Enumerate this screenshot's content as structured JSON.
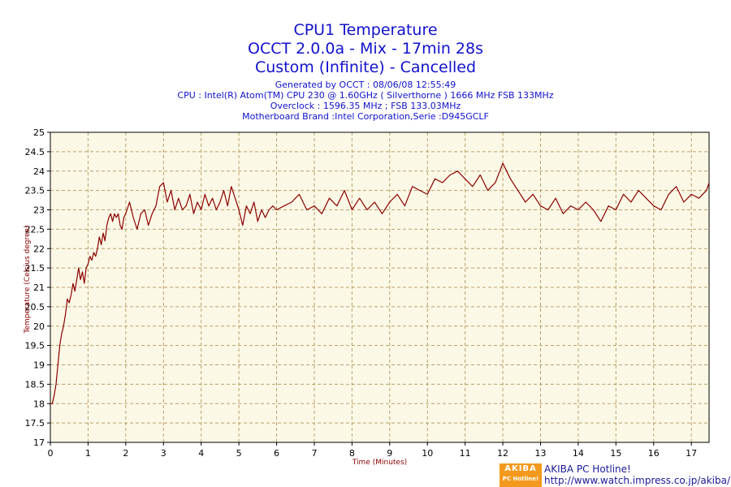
{
  "titles": {
    "line1": "CPU1 Temperature",
    "line2": "OCCT 2.0.0a - Mix - 17min 28s",
    "line3": "Custom (Infinite) - Cancelled",
    "generated": "Generated by OCCT : 08/06/08 12:55:49",
    "cpu": "CPU : Intel(R) Atom(TM) CPU 230 @ 1.60GHz ( Silverthorne ) 1666 MHz FSB 133MHz",
    "overclock": "Overclock : 1596.35 MHz ; FSB 133.03MHz",
    "motherboard": "Motherboard Brand :Intel Corporation,Serie :D945GCLF"
  },
  "watermark": {
    "logo_line1": "AKIBA",
    "logo_line2": "PC Hotline!",
    "site_name": "AKIBA PC Hotline!",
    "url": "http://www.watch.impress.co.jp/akiba/"
  },
  "colors": {
    "title": "#1111cc",
    "plot_bg": "#fcf8e6",
    "grid": "#b8a070",
    "line": "#8b0000",
    "axis_label": "#8b0000"
  },
  "chart_data": {
    "type": "line",
    "title": "CPU1 Temperature",
    "xlabel": "Time (Minutes)",
    "ylabel": "Temperature (Celsius degree)",
    "xlim": [
      0,
      17.47
    ],
    "ylim": [
      17,
      25
    ],
    "xticks": [
      0,
      1,
      2,
      3,
      4,
      5,
      6,
      7,
      8,
      9,
      10,
      11,
      12,
      13,
      14,
      15,
      16,
      17
    ],
    "yticks": [
      17,
      17.5,
      18,
      18.5,
      19,
      19.5,
      20,
      20.5,
      21,
      21.5,
      22,
      22.5,
      23,
      23.5,
      24,
      24.5,
      25
    ],
    "ytick_labels": [
      "17",
      "17.5",
      "18",
      "18.5",
      "19",
      "19.5",
      "20",
      "20.5",
      "21",
      "21.5",
      "22",
      "22.5",
      "23",
      "23.5",
      "24",
      "24.5",
      "25"
    ],
    "grid": true,
    "series": [
      {
        "name": "CPU1 Temperature",
        "x": [
          0,
          0.05,
          0.1,
          0.15,
          0.2,
          0.25,
          0.3,
          0.35,
          0.4,
          0.45,
          0.5,
          0.55,
          0.6,
          0.65,
          0.7,
          0.75,
          0.8,
          0.85,
          0.9,
          0.95,
          1.0,
          1.05,
          1.1,
          1.15,
          1.2,
          1.25,
          1.3,
          1.35,
          1.4,
          1.45,
          1.5,
          1.55,
          1.6,
          1.65,
          1.7,
          1.75,
          1.8,
          1.85,
          1.9,
          1.95,
          2.0,
          2.1,
          2.2,
          2.3,
          2.4,
          2.5,
          2.6,
          2.7,
          2.8,
          2.9,
          3.0,
          3.1,
          3.2,
          3.3,
          3.4,
          3.5,
          3.6,
          3.7,
          3.8,
          3.9,
          4.0,
          4.1,
          4.2,
          4.3,
          4.4,
          4.5,
          4.6,
          4.7,
          4.8,
          4.9,
          5.0,
          5.1,
          5.2,
          5.3,
          5.4,
          5.5,
          5.6,
          5.7,
          5.8,
          5.9,
          6.0,
          6.2,
          6.4,
          6.6,
          6.8,
          7.0,
          7.2,
          7.4,
          7.6,
          7.8,
          8.0,
          8.2,
          8.4,
          8.6,
          8.8,
          9.0,
          9.2,
          9.4,
          9.6,
          9.8,
          10.0,
          10.2,
          10.4,
          10.6,
          10.8,
          11.0,
          11.2,
          11.4,
          11.6,
          11.8,
          12.0,
          12.2,
          12.4,
          12.6,
          12.8,
          13.0,
          13.2,
          13.4,
          13.6,
          13.8,
          14.0,
          14.2,
          14.4,
          14.6,
          14.8,
          15.0,
          15.2,
          15.4,
          15.6,
          15.8,
          16.0,
          16.2,
          16.4,
          16.6,
          16.8,
          17.0,
          17.2,
          17.4,
          17.47
        ],
        "values": [
          18.0,
          18.0,
          18.2,
          18.5,
          19.0,
          19.5,
          19.8,
          20.0,
          20.3,
          20.7,
          20.6,
          20.8,
          21.1,
          20.9,
          21.2,
          21.5,
          21.2,
          21.4,
          21.1,
          21.5,
          21.6,
          21.8,
          21.7,
          21.9,
          21.8,
          22.0,
          22.3,
          22.1,
          22.4,
          22.2,
          22.6,
          22.8,
          22.9,
          22.7,
          22.9,
          22.8,
          22.9,
          22.6,
          22.5,
          22.8,
          22.9,
          23.2,
          22.8,
          22.5,
          22.9,
          23.0,
          22.6,
          22.9,
          23.1,
          23.6,
          23.7,
          23.2,
          23.5,
          23.0,
          23.3,
          23.0,
          23.1,
          23.4,
          22.9,
          23.2,
          23.0,
          23.4,
          23.1,
          23.3,
          23.0,
          23.2,
          23.5,
          23.1,
          23.6,
          23.3,
          23.0,
          22.6,
          23.1,
          22.9,
          23.2,
          22.7,
          23.0,
          22.8,
          23.0,
          23.1,
          23.0,
          23.1,
          23.2,
          23.4,
          23.0,
          23.1,
          22.9,
          23.3,
          23.1,
          23.5,
          23.0,
          23.3,
          23.0,
          23.2,
          22.9,
          23.2,
          23.4,
          23.1,
          23.6,
          23.5,
          23.4,
          23.8,
          23.7,
          23.9,
          24.0,
          23.8,
          23.6,
          23.9,
          23.5,
          23.7,
          24.2,
          23.8,
          23.5,
          23.2,
          23.4,
          23.1,
          23.0,
          23.3,
          22.9,
          23.1,
          23.0,
          23.2,
          23.0,
          22.7,
          23.1,
          23.0,
          23.4,
          23.2,
          23.5,
          23.3,
          23.1,
          23.0,
          23.4,
          23.6,
          23.2,
          23.4,
          23.3,
          23.5,
          23.7
        ]
      }
    ]
  }
}
